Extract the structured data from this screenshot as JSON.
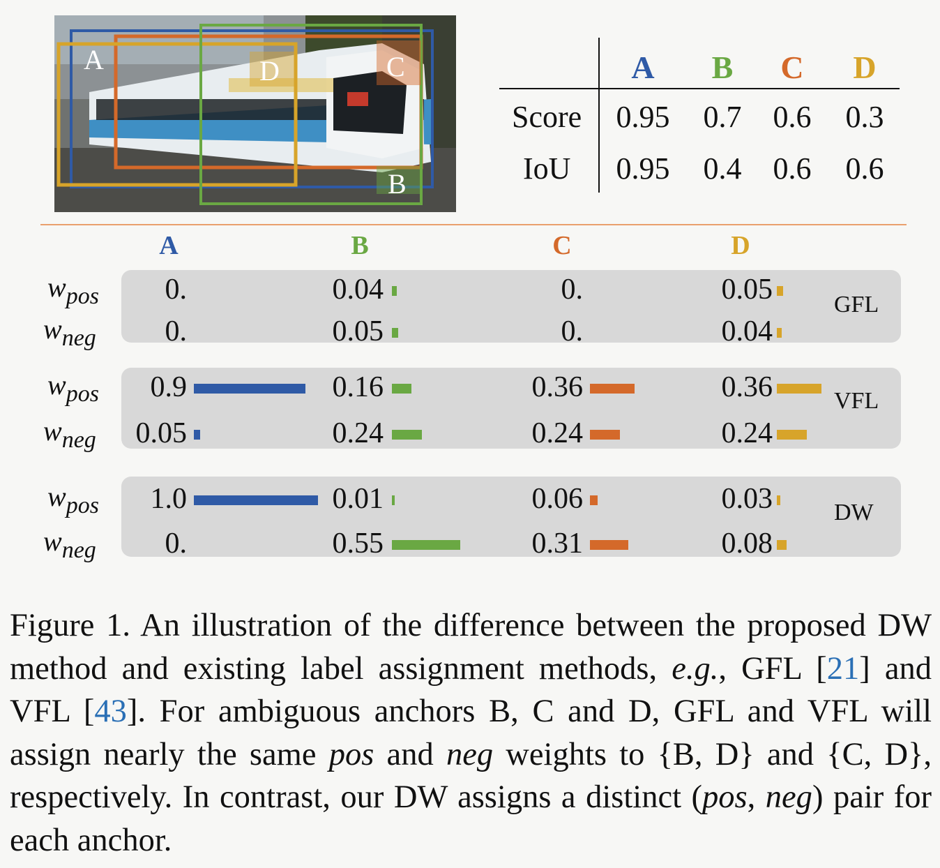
{
  "colors": {
    "A": "#2f5aa6",
    "B": "#6aa843",
    "C": "#d4692a",
    "D": "#d7a42a",
    "divider": "#e9a06d",
    "panel": "#d8d8d8",
    "ref_link": "#2a6fb5"
  },
  "image": {
    "description_icon": "tram-photo",
    "box_labels": {
      "A": "A",
      "B": "B",
      "C": "C",
      "D": "D"
    }
  },
  "score_table": {
    "columns": [
      "A",
      "B",
      "C",
      "D"
    ],
    "rows": [
      {
        "label": "Score",
        "values": [
          "0.95",
          "0.7",
          "0.6",
          "0.3"
        ]
      },
      {
        "label": "IoU",
        "values": [
          "0.95",
          "0.4",
          "0.6",
          "0.6"
        ]
      }
    ]
  },
  "weights": {
    "columns": [
      "A",
      "B",
      "C",
      "D"
    ],
    "w_base": "w",
    "pos_sub": "pos",
    "neg_sub": "neg",
    "methods": [
      {
        "name": "GFL",
        "pos": [
          {
            "text": "0.",
            "v": 0
          },
          {
            "text": "0.04",
            "v": 0.04
          },
          {
            "text": "0.",
            "v": 0
          },
          {
            "text": "0.05",
            "v": 0.05
          }
        ],
        "neg": [
          {
            "text": "0.",
            "v": 0
          },
          {
            "text": "0.05",
            "v": 0.05
          },
          {
            "text": "0.",
            "v": 0
          },
          {
            "text": "0.04",
            "v": 0.04
          }
        ]
      },
      {
        "name": "VFL",
        "pos": [
          {
            "text": "0.9",
            "v": 0.9
          },
          {
            "text": "0.16",
            "v": 0.16
          },
          {
            "text": "0.36",
            "v": 0.36
          },
          {
            "text": "0.36",
            "v": 0.36
          }
        ],
        "neg": [
          {
            "text": "0.05",
            "v": 0.05
          },
          {
            "text": "0.24",
            "v": 0.24
          },
          {
            "text": "0.24",
            "v": 0.24
          },
          {
            "text": "0.24",
            "v": 0.24
          }
        ]
      },
      {
        "name": "DW",
        "pos": [
          {
            "text": "1.0",
            "v": 1.0
          },
          {
            "text": "0.01",
            "v": 0.01
          },
          {
            "text": "0.06",
            "v": 0.06
          },
          {
            "text": "0.03",
            "v": 0.03
          }
        ],
        "neg": [
          {
            "text": "0.",
            "v": 0
          },
          {
            "text": "0.55",
            "v": 0.55
          },
          {
            "text": "0.31",
            "v": 0.31
          },
          {
            "text": "0.08",
            "v": 0.08
          }
        ]
      }
    ]
  },
  "caption": {
    "p1": "Figure 1.  An illustration of the difference between the proposed DW method and existing label assignment methods, ",
    "eg": "e.g.",
    "p2": ", GFL [",
    "ref1": "21",
    "p3": "] and VFL [",
    "ref2": "43",
    "p4": "]. For ambiguous anchors B, C and D, GFL and VFL will assign nearly the same ",
    "pos": "pos",
    "p5": " and ",
    "neg": "neg",
    "p6": " weights to {B, D} and {C, D}, respectively. In contrast, our DW assigns a distinct (",
    "pos2": "pos",
    "p7": ", ",
    "neg2": "neg",
    "p8": ") pair for each anchor."
  }
}
